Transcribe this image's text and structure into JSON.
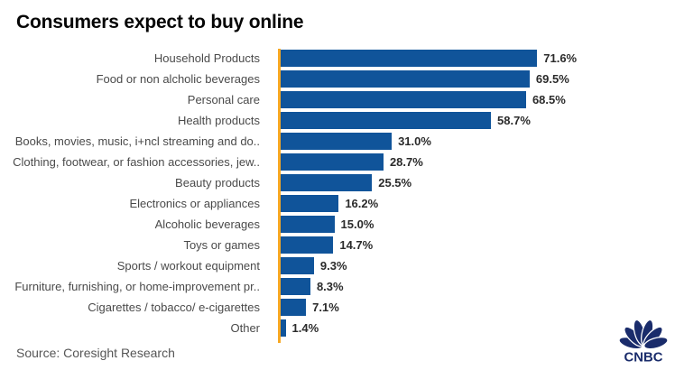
{
  "title": "Consumers expect to buy online",
  "source": "Source: Coresight Research",
  "logo": {
    "name": "CNBC",
    "wordmark": "CNBC"
  },
  "colors": {
    "bar": "#10549a",
    "axis": "#f7a823",
    "logo": "#1a2c6b",
    "title_text": "#050505",
    "category_text": "#4a4a4a",
    "value_text": "#2b2b2b",
    "source_text": "#565656"
  },
  "chart_data": {
    "type": "bar",
    "orientation": "horizontal",
    "title": "Consumers expect to buy online",
    "xlabel": "",
    "ylabel": "",
    "xlim": [
      0,
      75
    ],
    "grid": false,
    "legend": false,
    "value_suffix": "%",
    "categories": [
      "Household Products",
      "Food or non alcholic beverages",
      "Personal care",
      "Health products",
      "Books, movies, music, i+ncl streaming and do..",
      "Clothing, footwear, or fashion accessories, jew..",
      "Beauty products",
      "Electronics or appliances",
      "Alcoholic beverages",
      "Toys or games",
      "Sports / workout equipment",
      "Furniture, furnishing, or home-improvement pr..",
      "Cigarettes / tobacco/ e-cigarettes",
      "Other"
    ],
    "values": [
      71.6,
      69.5,
      68.5,
      58.7,
      31.0,
      28.7,
      25.5,
      16.2,
      15.0,
      14.7,
      9.3,
      8.3,
      7.1,
      1.4
    ],
    "value_labels": [
      "71.6%",
      "69.5%",
      "68.5%",
      "58.7%",
      "31.0%",
      "28.7%",
      "25.5%",
      "16.2%",
      "15.0%",
      "14.7%",
      "9.3%",
      "8.3%",
      "7.1%",
      "1.4%"
    ]
  }
}
